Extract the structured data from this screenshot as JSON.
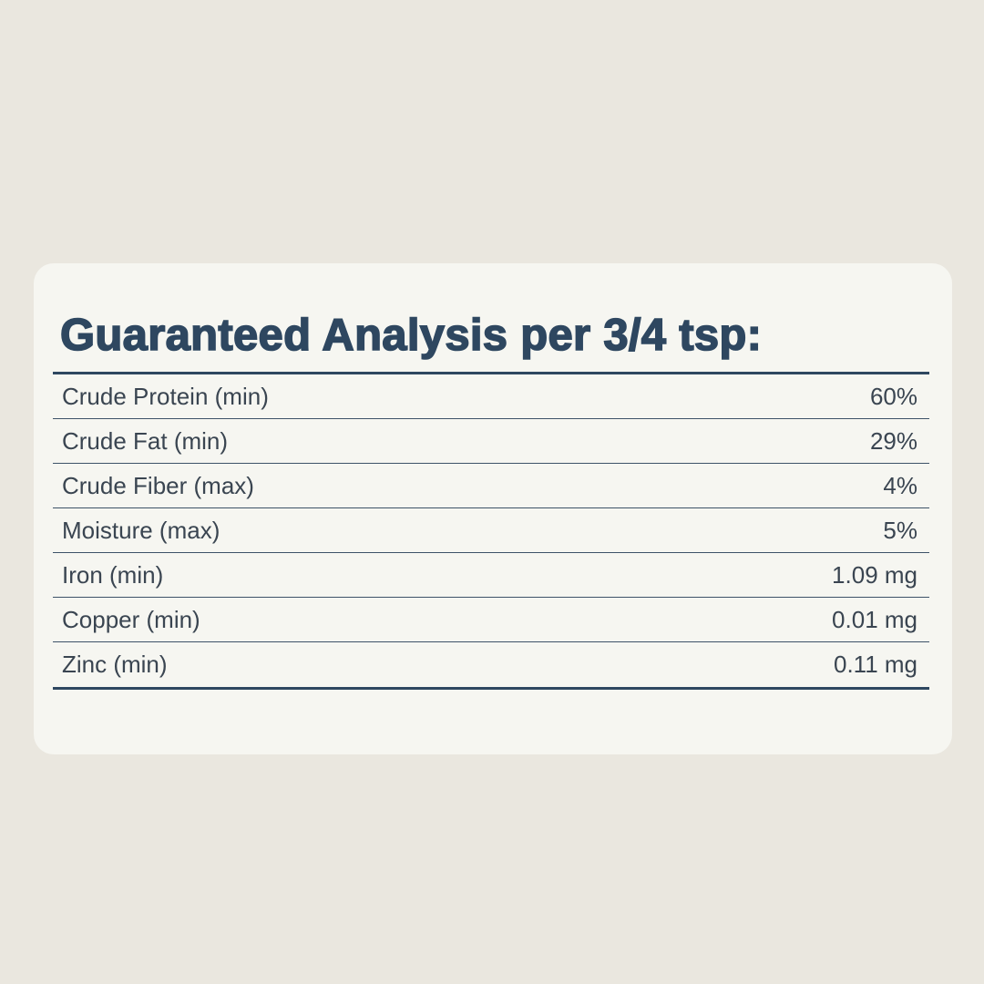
{
  "title": "Guaranteed Analysis per 3/4 tsp:",
  "rows": [
    {
      "label": "Crude Protein (min)",
      "value": "60%"
    },
    {
      "label": "Crude Fat (min)",
      "value": "29%"
    },
    {
      "label": "Crude Fiber (max)",
      "value": "4%"
    },
    {
      "label": "Moisture (max)",
      "value": "5%"
    },
    {
      "label": "Iron (min)",
      "value": "1.09 mg"
    },
    {
      "label": "Copper (min)",
      "value": "0.01 mg"
    },
    {
      "label": "Zinc (min)",
      "value": "0.11 mg"
    }
  ],
  "colors": {
    "background": "#eae7df",
    "card": "#f6f6f1",
    "heading": "#2e4760",
    "text": "#3a4551"
  }
}
